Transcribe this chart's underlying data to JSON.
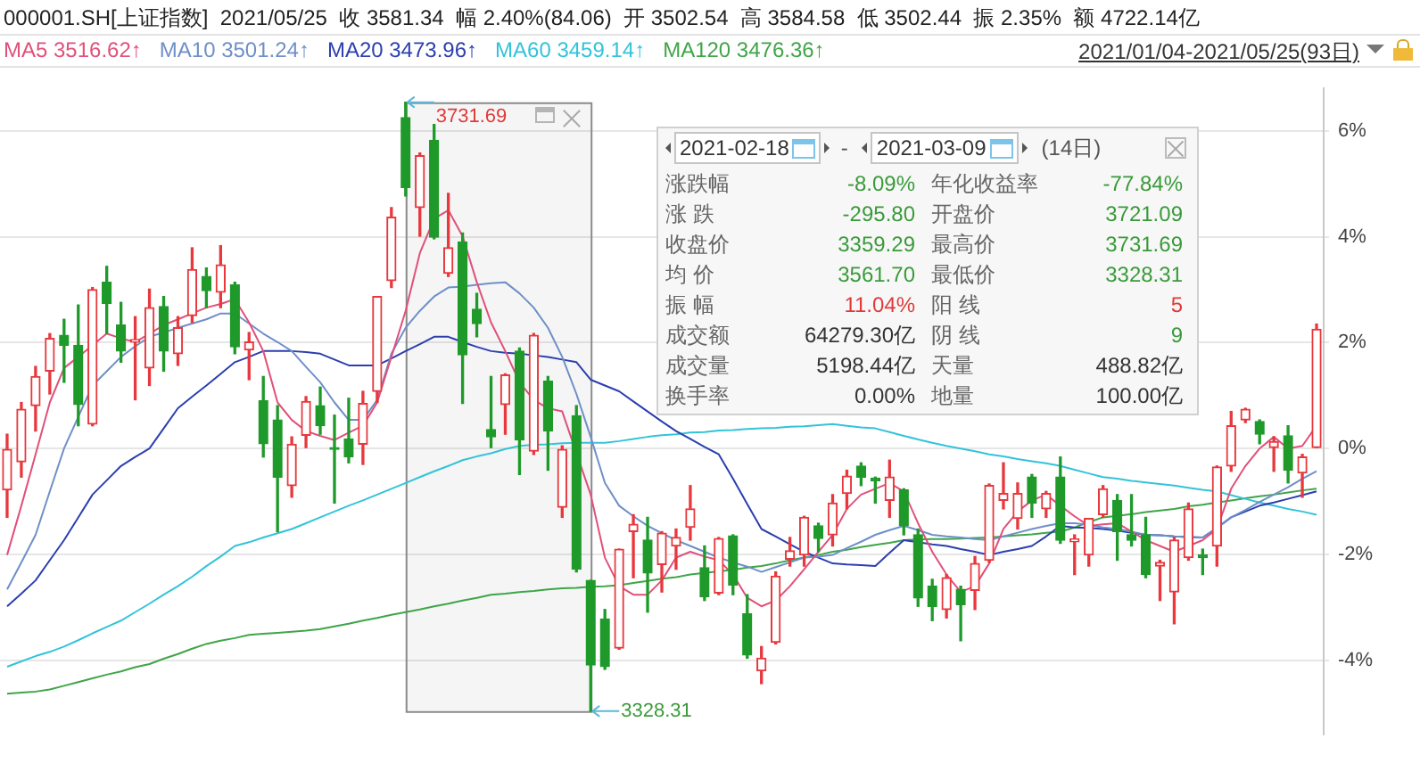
{
  "chart_data": [
    {
      "type": "candlestick",
      "title": "000001.SH[上证指数]  2021/05/25  收 3581.34  幅 2.40%(84.06)  开 3502.54  高 3584.58  低 3502.44  振 2.35%  额 4722.14亿",
      "subtitle": "2021/01/04-2021/05/25(93日)",
      "categories": [
        null,
        null,
        null,
        null,
        null,
        null,
        null,
        null,
        null,
        null,
        null,
        null,
        null,
        null,
        null,
        null,
        null,
        null,
        null,
        null,
        null,
        null,
        null,
        null,
        null,
        null,
        null,
        null,
        null,
        null,
        null,
        null,
        null,
        null,
        null,
        null,
        null,
        null,
        null,
        null,
        null,
        null,
        null,
        null,
        null,
        null,
        null,
        null,
        null,
        null,
        null,
        null,
        null,
        null,
        null,
        null,
        null,
        null,
        null,
        null,
        null,
        null,
        null,
        null,
        null,
        null,
        null,
        null,
        null,
        null,
        null,
        null,
        null,
        null,
        null,
        null,
        null,
        null,
        null,
        null,
        null,
        null,
        null,
        null,
        null,
        null,
        null,
        null,
        null,
        null,
        null,
        null,
        null
      ],
      "ohlc": [
        [
          -0.78,
          0.27,
          -1.3,
          0.0
        ],
        [
          -0.25,
          0.87,
          -0.54,
          0.74
        ],
        [
          0.81,
          1.55,
          0.33,
          1.36
        ],
        [
          1.46,
          2.17,
          1.03,
          2.08
        ],
        [
          2.14,
          2.44,
          1.25,
          1.95
        ],
        [
          1.95,
          2.71,
          0.43,
          0.83
        ],
        [
          0.46,
          3.04,
          0.43,
          3.0
        ],
        [
          3.14,
          3.44,
          2.17,
          2.74
        ],
        [
          2.33,
          2.76,
          1.63,
          1.84
        ],
        [
          2.01,
          2.49,
          0.92,
          2.06
        ],
        [
          1.52,
          3.01,
          1.19,
          2.66
        ],
        [
          2.68,
          2.87,
          1.46,
          1.84
        ],
        [
          1.79,
          2.49,
          1.57,
          2.28
        ],
        [
          2.51,
          3.79,
          2.38,
          3.38
        ],
        [
          3.25,
          3.41,
          2.66,
          2.98
        ],
        [
          2.95,
          3.83,
          2.66,
          3.47
        ],
        [
          3.09,
          3.14,
          1.79,
          1.92
        ],
        [
          1.86,
          2.19,
          1.3,
          2.01
        ],
        [
          0.9,
          1.36,
          -0.16,
          0.09
        ],
        [
          0.54,
          0.81,
          -1.57,
          -0.54
        ],
        [
          -0.7,
          0.22,
          -0.92,
          0.08
        ],
        [
          0.25,
          0.98,
          0.0,
          0.89
        ],
        [
          0.81,
          1.16,
          0.27,
          0.43
        ],
        [
          0.03,
          0.63,
          -1.03,
          0.0
        ],
        [
          0.18,
          0.95,
          -0.27,
          -0.16
        ],
        [
          0.08,
          1.08,
          -0.3,
          0.85
        ],
        [
          1.08,
          2.87,
          0.87,
          2.87
        ],
        [
          3.17,
          4.55,
          3.04,
          4.37
        ],
        [
          6.25,
          6.54,
          4.77,
          4.93
        ],
        [
          4.55,
          5.58,
          4.01,
          5.53
        ],
        [
          5.82,
          6.12,
          3.96,
          3.99
        ],
        [
          3.31,
          4.82,
          3.25,
          3.79
        ],
        [
          3.9,
          4.07,
          0.85,
          1.77
        ],
        [
          2.63,
          2.93,
          2.11,
          2.36
        ],
        [
          0.36,
          1.36,
          0.0,
          0.22
        ],
        [
          0.83,
          1.41,
          0.27,
          1.39
        ],
        [
          1.84,
          1.9,
          -0.49,
          0.16
        ],
        [
          -0.05,
          2.17,
          -0.11,
          2.14
        ],
        [
          1.27,
          1.36,
          -0.41,
          0.33
        ],
        [
          -1.11,
          0.05,
          -1.3,
          0.0
        ],
        [
          0.62,
          0.81,
          -2.33,
          -2.28
        ],
        [
          -2.49,
          -2.49,
          -4.96,
          -4.09
        ],
        [
          -3.22,
          -3.04,
          -4.17,
          -4.12
        ],
        [
          -3.77,
          -1.9,
          -3.79,
          -1.9
        ],
        [
          -1.57,
          -1.25,
          -2.44,
          -1.43
        ],
        [
          -1.73,
          -1.3,
          -3.09,
          -2.35
        ],
        [
          -2.19,
          -1.57,
          -2.71,
          -1.6
        ],
        [
          -1.84,
          -1.52,
          -2.28,
          -1.68
        ],
        [
          -1.49,
          -0.7,
          -1.73,
          -1.14
        ],
        [
          -2.25,
          -1.84,
          -2.87,
          -2.8
        ],
        [
          -2.73,
          -1.68,
          -2.76,
          -1.7
        ],
        [
          -1.65,
          -1.63,
          -2.76,
          -2.58
        ],
        [
          -3.12,
          -2.76,
          -3.96,
          -3.9
        ],
        [
          -4.2,
          -3.74,
          -4.44,
          -3.96
        ],
        [
          -3.66,
          -2.33,
          -3.69,
          -2.41
        ],
        [
          -2.09,
          -1.68,
          -2.22,
          -1.93
        ],
        [
          -2.01,
          -1.28,
          -2.22,
          -1.3
        ],
        [
          -1.46,
          -1.41,
          -1.95,
          -1.7
        ],
        [
          -1.63,
          -0.87,
          -1.84,
          -1.03
        ],
        [
          -0.85,
          -0.41,
          -1.14,
          -0.52
        ],
        [
          -0.33,
          -0.27,
          -0.7,
          -0.54
        ],
        [
          -0.56,
          -0.54,
          -1.03,
          -0.61
        ],
        [
          -0.98,
          -0.22,
          -1.3,
          -0.54
        ],
        [
          -0.78,
          -0.76,
          -1.63,
          -1.46
        ],
        [
          -1.63,
          -1.52,
          -2.98,
          -2.82
        ],
        [
          -2.6,
          -2.47,
          -3.25,
          -2.98
        ],
        [
          -3.04,
          -2.38,
          -3.2,
          -2.44
        ],
        [
          -2.66,
          -2.6,
          -3.63,
          -2.95
        ],
        [
          -2.68,
          -2.04,
          -3.04,
          -2.17
        ],
        [
          -2.11,
          -0.67,
          -2.15,
          -0.7
        ],
        [
          -0.98,
          -0.27,
          -1.14,
          -0.85
        ],
        [
          -1.32,
          -0.65,
          -1.52,
          -0.85
        ],
        [
          -0.54,
          -0.49,
          -1.3,
          -1.03
        ],
        [
          -1.14,
          -0.81,
          -1.3,
          -0.85
        ],
        [
          -0.54,
          -0.16,
          -1.79,
          -1.73
        ],
        [
          -1.76,
          -1.63,
          -2.38,
          -1.71
        ],
        [
          -2.01,
          -1.32,
          -2.22,
          -1.32
        ],
        [
          -1.25,
          -0.7,
          -1.3,
          -0.76
        ],
        [
          -0.98,
          -0.87,
          -2.11,
          -1.57
        ],
        [
          -1.63,
          -0.87,
          -1.84,
          -1.73
        ],
        [
          -1.63,
          -1.3,
          -2.44,
          -2.38
        ],
        [
          -2.22,
          -2.11,
          -2.87,
          -2.15
        ],
        [
          -2.71,
          -1.68,
          -3.31,
          -1.73
        ],
        [
          -2.06,
          -1.03,
          -2.11,
          -1.14
        ],
        [
          -2.01,
          -1.9,
          -2.38,
          -2.06
        ],
        [
          -1.84,
          -0.33,
          -2.22,
          -0.35
        ],
        [
          -0.33,
          0.7,
          -0.43,
          0.43
        ],
        [
          0.54,
          0.76,
          0.49,
          0.74
        ],
        [
          0.51,
          0.54,
          0.09,
          0.27
        ],
        [
          0.0,
          0.22,
          -0.43,
          0.13
        ],
        [
          0.24,
          0.43,
          -0.65,
          -0.41
        ],
        [
          -0.46,
          -0.11,
          -0.92,
          -0.16
        ],
        [
          0.0,
          2.35,
          0.0,
          2.25
        ]
      ],
      "series": [
        {
          "name": "MA5 3516.62↑",
          "type": "line",
          "color": "#e0507a",
          "values": [
            -2.01,
            -1.08,
            -0.11,
            0.87,
            1.52,
            1.73,
            1.95,
            2.17,
            2.08,
            2.01,
            2.17,
            2.33,
            2.44,
            2.55,
            2.66,
            2.73,
            2.82,
            2.38,
            1.84,
            0.87,
            0.54,
            0.33,
            0.24,
            0.16,
            0.3,
            0.43,
            0.87,
            1.73,
            2.6,
            3.69,
            4.34,
            4.5,
            4.01,
            3.14,
            2.38,
            1.84,
            1.25,
            0.92,
            0.76,
            0.7,
            null,
            -0.87,
            -2.06,
            -2.6,
            -2.76,
            -2.76,
            -2.49,
            -2.06,
            -1.95,
            -2.04,
            -2.11,
            -2.38,
            -2.82,
            -2.98,
            -2.87,
            -2.6,
            -2.28,
            -1.95,
            -1.63,
            -1.14,
            -0.87,
            -0.76,
            -0.65,
            -0.81,
            -1.41,
            -1.95,
            -2.38,
            -2.71,
            -2.6,
            -2.17,
            -1.52,
            -1.19,
            -0.98,
            -0.87,
            -1.08,
            -1.28,
            -1.46,
            -1.43,
            -1.41,
            -1.57,
            -1.73,
            -1.84,
            -1.95,
            -1.84,
            -1.73,
            -1.52,
            -0.76,
            -0.33,
            0.0,
            0.22,
            0.0,
            0.05,
            0.43
          ]
        },
        {
          "name": "MA10 3501.24↑",
          "type": "line",
          "color": "#6f8fc8",
          "values": [
            -2.66,
            -2.15,
            -1.63,
            -0.81,
            0.0,
            0.6,
            1.19,
            1.46,
            1.73,
            1.93,
            2.11,
            2.19,
            2.28,
            2.36,
            2.44,
            2.55,
            2.55,
            2.36,
            2.17,
            2.01,
            1.84,
            1.54,
            1.25,
            0.87,
            0.54,
            0.54,
            0.92,
            1.79,
            2.28,
            2.6,
            2.87,
            3.04,
            3.06,
            3.09,
            3.12,
            3.14,
            2.93,
            2.66,
            2.28,
            1.73,
            1.03,
            0.22,
            -0.65,
            -1.08,
            -1.28,
            -1.46,
            -1.6,
            -1.73,
            -1.84,
            -1.95,
            -2.06,
            -2.15,
            -2.23,
            -2.33,
            -2.24,
            -2.15,
            -2.06,
            -2.04,
            -2.01,
            -1.88,
            -1.76,
            -1.63,
            -1.54,
            -1.46,
            -1.54,
            -1.63,
            -1.66,
            -1.68,
            -1.71,
            -1.73,
            -1.66,
            -1.59,
            -1.52,
            -1.46,
            -1.41,
            -1.41,
            -1.44,
            -1.49,
            -1.52,
            -1.57,
            -1.63,
            -1.64,
            -1.66,
            -1.67,
            -1.68,
            -1.5,
            -1.3,
            -1.16,
            -1.01,
            -0.87,
            -0.73,
            -0.57,
            -0.43
          ]
        },
        {
          "name": "MA20 3473.96↑",
          "type": "line",
          "color": "#2b3fae",
          "values": [
            -2.98,
            -2.74,
            -2.49,
            -2.11,
            -1.73,
            -1.3,
            -0.87,
            -0.6,
            -0.33,
            -0.16,
            0.0,
            0.38,
            0.76,
            0.98,
            1.19,
            1.41,
            1.63,
            1.73,
            1.84,
            1.84,
            1.84,
            1.82,
            1.79,
            1.68,
            1.57,
            1.57,
            1.57,
            1.7,
            1.84,
            1.97,
            2.11,
            2.11,
            2.01,
            1.92,
            1.84,
            1.81,
            1.79,
            1.76,
            1.73,
            1.68,
            1.63,
            1.3,
            1.19,
            1.08,
            0.89,
            0.7,
            0.51,
            0.33,
            0.18,
            0.03,
            -0.11,
            -0.57,
            -1.05,
            -1.52,
            -1.66,
            -1.81,
            -1.95,
            -2.06,
            -2.17,
            -2.19,
            -2.2,
            -2.22,
            -1.97,
            -1.73,
            -1.77,
            -1.81,
            -1.84,
            -1.9,
            -1.95,
            -2.01,
            -1.95,
            -1.9,
            -1.84,
            -1.66,
            -1.46,
            -1.49,
            -1.5,
            -1.52,
            -1.55,
            -1.59,
            -1.63,
            -1.64,
            -1.66,
            -1.67,
            -1.68,
            -1.5,
            -1.3,
            -1.19,
            -1.08,
            -1.02,
            -0.95,
            -0.88,
            -0.81
          ]
        },
        {
          "name": "MA60 3459.14↑",
          "type": "line",
          "color": "#33c3da",
          "values": [
            -4.12,
            -4.02,
            -3.92,
            -3.84,
            -3.74,
            -3.62,
            -3.49,
            -3.37,
            -3.25,
            -3.09,
            -2.93,
            -2.76,
            -2.6,
            -2.42,
            -2.22,
            -2.04,
            -1.84,
            -1.77,
            -1.68,
            -1.6,
            -1.52,
            -1.41,
            -1.3,
            -1.19,
            -1.08,
            -0.98,
            -0.87,
            -0.76,
            -0.65,
            -0.54,
            -0.43,
            -0.33,
            -0.22,
            -0.15,
            -0.09,
            -0.01,
            0.05,
            0.07,
            0.08,
            0.1,
            0.11,
            0.11,
            0.11,
            0.14,
            0.18,
            0.22,
            0.25,
            0.27,
            0.3,
            0.31,
            0.34,
            0.35,
            0.37,
            0.38,
            0.39,
            0.41,
            0.42,
            0.44,
            0.46,
            0.43,
            0.4,
            0.38,
            0.31,
            0.24,
            0.17,
            0.11,
            0.05,
            0.0,
            -0.05,
            -0.11,
            -0.15,
            -0.2,
            -0.24,
            -0.28,
            -0.33,
            -0.4,
            -0.47,
            -0.54,
            -0.57,
            -0.61,
            -0.64,
            -0.67,
            -0.7,
            -0.74,
            -0.78,
            -0.81,
            -0.88,
            -0.95,
            -1.02,
            -1.08,
            -1.14,
            -1.19,
            -1.25
          ]
        },
        {
          "name": "MA120 3476.36↑",
          "type": "line",
          "color": "#3fa548",
          "values": [
            -4.63,
            -4.61,
            -4.59,
            -4.55,
            -4.48,
            -4.41,
            -4.34,
            -4.27,
            -4.21,
            -4.13,
            -4.07,
            -3.97,
            -3.88,
            -3.78,
            -3.69,
            -3.63,
            -3.58,
            -3.52,
            -3.5,
            -3.48,
            -3.46,
            -3.44,
            -3.41,
            -3.36,
            -3.31,
            -3.25,
            -3.2,
            -3.14,
            -3.09,
            -3.04,
            -2.98,
            -2.93,
            -2.87,
            -2.82,
            -2.76,
            -2.74,
            -2.71,
            -2.69,
            -2.66,
            -2.64,
            -2.63,
            -2.61,
            -2.6,
            -2.58,
            -2.54,
            -2.5,
            -2.46,
            -2.43,
            -2.38,
            -2.35,
            -2.32,
            -2.29,
            -2.25,
            -2.22,
            -2.17,
            -2.11,
            -2.06,
            -2.01,
            -1.95,
            -1.91,
            -1.86,
            -1.82,
            -1.78,
            -1.73,
            -1.72,
            -1.71,
            -1.71,
            -1.7,
            -1.69,
            -1.68,
            -1.66,
            -1.64,
            -1.62,
            -1.59,
            -1.57,
            -1.49,
            -1.39,
            -1.3,
            -1.27,
            -1.24,
            -1.2,
            -1.17,
            -1.14,
            -1.09,
            -1.06,
            -1.02,
            -0.98,
            -0.94,
            -0.9,
            -0.87,
            -0.83,
            -0.79,
            -0.76
          ]
        }
      ],
      "ylim": [
        -5.4,
        6.8
      ],
      "yticks": [
        {
          "value": -4,
          "label": "-4%"
        },
        {
          "value": -2,
          "label": "-2%"
        },
        {
          "value": 0,
          "label": "0%"
        },
        {
          "value": 2,
          "label": "2%"
        },
        {
          "value": 4,
          "label": "4%"
        },
        {
          "value": 6,
          "label": "6%"
        }
      ],
      "annotations": [
        "3731.69",
        "3328.31"
      ],
      "grid": "y",
      "legend": "top left",
      "tick_labels": "y"
    },
    {
      "type": "other",
      "annotations": [
        "2021-02-18",
        "-",
        "2021-03-09",
        "(14日)",
        "涨跌幅",
        "-8.09%",
        "年化收益率",
        "-77.84%",
        "涨 跌",
        "-295.80",
        "开盘价",
        "3721.09",
        "收盘价",
        "3359.29",
        "最高价",
        "3731.69",
        "均 价",
        "3561.70",
        "最低价",
        "3328.31",
        "振 幅",
        "11.04%",
        "阳 线",
        "5",
        "成交额",
        "64279.30亿",
        "阴 线",
        "9",
        "成交量",
        "5198.44亿",
        "天量",
        "488.82亿",
        "换手率",
        "0.00%",
        "地量",
        "100.00亿"
      ],
      "colors": [
        null,
        null,
        null,
        null,
        null,
        "#3a9a3a",
        null,
        "#3a9a3a",
        null,
        "#3a9a3a",
        null,
        "#3a9a3a",
        null,
        "#3a9a3a",
        null,
        "#3a9a3a",
        null,
        "#3a9a3a",
        null,
        "#3a9a3a",
        null,
        "#e03a3a",
        null,
        "#e03a3a",
        null,
        null,
        null,
        "#3a9a3a",
        null,
        null,
        null,
        null,
        null,
        null,
        null,
        null
      ]
    }
  ]
}
